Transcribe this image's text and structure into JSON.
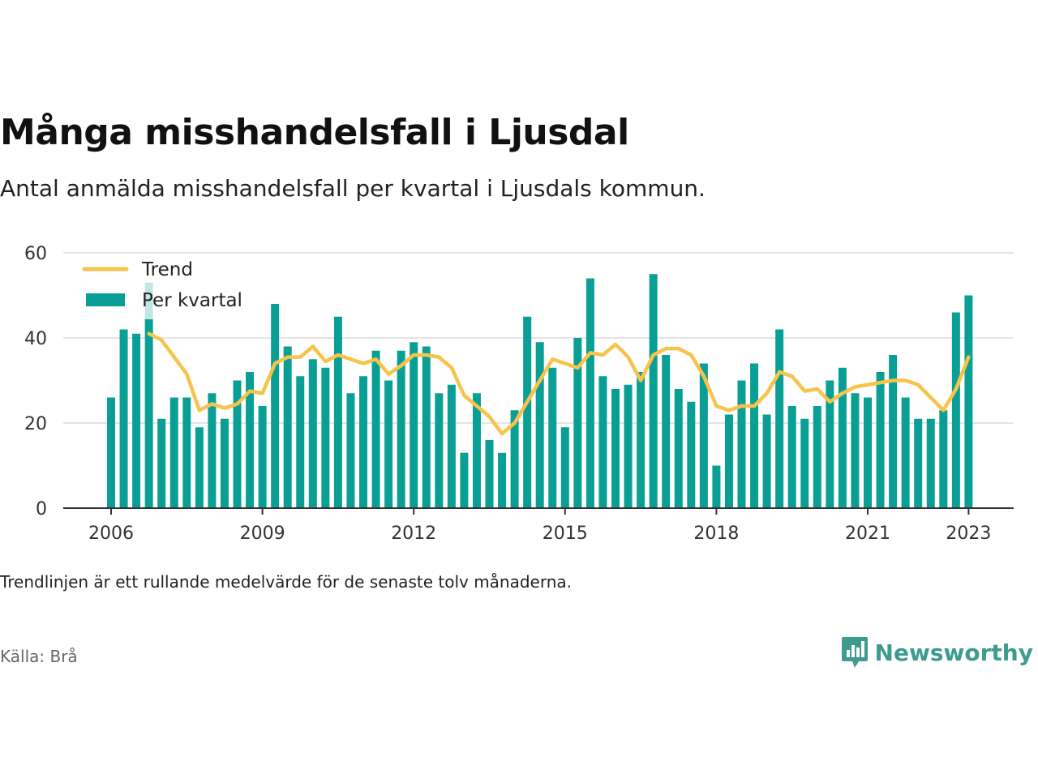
{
  "header": {
    "title": "Många misshandelsfall i Ljusdal",
    "subtitle": "Antal anmälda misshandelsfall per kvartal i Ljusdals kommun."
  },
  "footer": {
    "note": "Trendlinjen är ett rullande medelvärde för de senaste tolv månaderna.",
    "source": "Källa: Brå",
    "brand": "Newsworthy"
  },
  "colors": {
    "bar": "#0a9f95",
    "trend": "#f8c34a",
    "brand": "#3e9b8f",
    "grid": "#dcdcdc",
    "axis": "#333333"
  },
  "chart_data": {
    "type": "bar",
    "title": "",
    "xlabel": "",
    "ylabel": "",
    "ylim": [
      0,
      60
    ],
    "yticks": [
      0,
      20,
      40,
      60
    ],
    "xticks": [
      "2006",
      "2009",
      "2012",
      "2015",
      "2018",
      "2021",
      "2023"
    ],
    "grid": true,
    "legend_position": "top-left",
    "legend": [
      "Trend",
      "Per kvartal"
    ],
    "categories": [
      "2006 Q1",
      "2006 Q2",
      "2006 Q3",
      "2006 Q4",
      "2007 Q1",
      "2007 Q2",
      "2007 Q3",
      "2007 Q4",
      "2008 Q1",
      "2008 Q2",
      "2008 Q3",
      "2008 Q4",
      "2009 Q1",
      "2009 Q2",
      "2009 Q3",
      "2009 Q4",
      "2010 Q1",
      "2010 Q2",
      "2010 Q3",
      "2010 Q4",
      "2011 Q1",
      "2011 Q2",
      "2011 Q3",
      "2011 Q4",
      "2012 Q1",
      "2012 Q2",
      "2012 Q3",
      "2012 Q4",
      "2013 Q1",
      "2013 Q2",
      "2013 Q3",
      "2013 Q4",
      "2014 Q1",
      "2014 Q2",
      "2014 Q3",
      "2014 Q4",
      "2015 Q1",
      "2015 Q2",
      "2015 Q3",
      "2015 Q4",
      "2016 Q1",
      "2016 Q2",
      "2016 Q3",
      "2016 Q4",
      "2017 Q1",
      "2017 Q2",
      "2017 Q3",
      "2017 Q4",
      "2018 Q1",
      "2018 Q2",
      "2018 Q3",
      "2018 Q4",
      "2019 Q1",
      "2019 Q2",
      "2019 Q3",
      "2019 Q4",
      "2020 Q1",
      "2020 Q2",
      "2020 Q3",
      "2020 Q4",
      "2021 Q1",
      "2021 Q2",
      "2021 Q3",
      "2021 Q4",
      "2022 Q1",
      "2022 Q2",
      "2022 Q3",
      "2022 Q4",
      "2023 Q1"
    ],
    "series": [
      {
        "name": "Per kvartal",
        "type": "bar",
        "values": [
          26,
          42,
          41,
          53,
          21,
          26,
          26,
          19,
          27,
          21,
          30,
          32,
          24,
          48,
          38,
          31,
          35,
          33,
          45,
          27,
          31,
          37,
          30,
          37,
          39,
          38,
          27,
          29,
          13,
          27,
          16,
          13,
          23,
          45,
          39,
          33,
          19,
          40,
          54,
          31,
          28,
          29,
          32,
          55,
          36,
          28,
          25,
          34,
          10,
          22,
          30,
          34,
          22,
          42,
          24,
          21,
          24,
          30,
          33,
          27,
          26,
          32,
          36,
          26,
          21,
          21,
          23,
          46,
          50
        ]
      },
      {
        "name": "Trend",
        "type": "line",
        "values": [
          null,
          null,
          null,
          41,
          39.5,
          35.5,
          31.5,
          23,
          24.5,
          23.5,
          24.5,
          27.5,
          27,
          34,
          35.5,
          35.5,
          38,
          34.5,
          36,
          35,
          34,
          35,
          31.5,
          33.5,
          36,
          36,
          35.5,
          33,
          26.5,
          24,
          21.5,
          17.5,
          20,
          25,
          30,
          35,
          34,
          33,
          36.5,
          36,
          38.5,
          35.5,
          30,
          36,
          37.5,
          37.5,
          36,
          31,
          24,
          23,
          24,
          24,
          27,
          32,
          31,
          27.5,
          28,
          25,
          27,
          28.5,
          29,
          29.5,
          30,
          30,
          29,
          26,
          23,
          28,
          35.5
        ]
      }
    ]
  }
}
